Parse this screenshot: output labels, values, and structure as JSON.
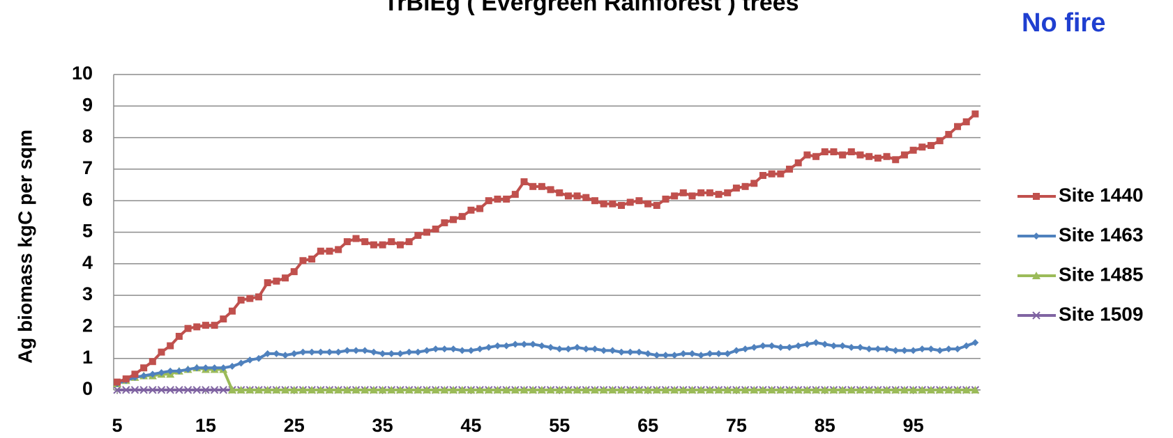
{
  "chart_data": {
    "type": "line",
    "title": "TrBlEg ( Evergreen Rainforest ) trees",
    "annotation": "No fire",
    "y_label": "Ag biomass kgC per sqm",
    "x": [
      5,
      6,
      7,
      8,
      9,
      10,
      11,
      12,
      13,
      14,
      15,
      16,
      17,
      18,
      19,
      20,
      21,
      22,
      23,
      24,
      25,
      26,
      27,
      28,
      29,
      30,
      31,
      32,
      33,
      34,
      35,
      36,
      37,
      38,
      39,
      40,
      41,
      42,
      43,
      44,
      45,
      46,
      47,
      48,
      49,
      50,
      51,
      52,
      53,
      54,
      55,
      56,
      57,
      58,
      59,
      60,
      61,
      62,
      63,
      64,
      65,
      66,
      67,
      68,
      69,
      70,
      71,
      72,
      73,
      74,
      75,
      76,
      77,
      78,
      79,
      80,
      81,
      82,
      83,
      84,
      85,
      86,
      87,
      88,
      89,
      90,
      91,
      92,
      93,
      94,
      95,
      96,
      97,
      98,
      99,
      100,
      101,
      102
    ],
    "xlim": [
      4.6,
      102.6
    ],
    "xticks": [
      5,
      15,
      25,
      35,
      45,
      55,
      65,
      75,
      85,
      95
    ],
    "ylim": [
      0,
      10
    ],
    "yticks": [
      0,
      1,
      2,
      3,
      4,
      5,
      6,
      7,
      8,
      9,
      10
    ],
    "grid": true,
    "legend": "right",
    "series": [
      {
        "name": "Site 1440",
        "color": "#c0504d",
        "marker": "square",
        "values": [
          0.25,
          0.35,
          0.5,
          0.7,
          0.9,
          1.2,
          1.4,
          1.7,
          1.95,
          2.0,
          2.05,
          2.05,
          2.25,
          2.5,
          2.85,
          2.9,
          2.95,
          3.4,
          3.45,
          3.55,
          3.75,
          4.1,
          4.15,
          4.4,
          4.4,
          4.45,
          4.7,
          4.8,
          4.7,
          4.6,
          4.6,
          4.7,
          4.6,
          4.7,
          4.9,
          5.0,
          5.1,
          5.3,
          5.4,
          5.5,
          5.7,
          5.75,
          6.0,
          6.05,
          6.05,
          6.2,
          6.6,
          6.45,
          6.45,
          6.35,
          6.25,
          6.15,
          6.15,
          6.1,
          6.0,
          5.9,
          5.9,
          5.85,
          5.95,
          6.0,
          5.9,
          5.85,
          6.05,
          6.15,
          6.25,
          6.15,
          6.25,
          6.25,
          6.2,
          6.25,
          6.4,
          6.45,
          6.55,
          6.8,
          6.85,
          6.85,
          7.0,
          7.2,
          7.45,
          7.4,
          7.55,
          7.55,
          7.45,
          7.55,
          7.45,
          7.4,
          7.35,
          7.4,
          7.3,
          7.45,
          7.6,
          7.7,
          7.75,
          7.9,
          8.1,
          8.35,
          8.5,
          8.75
        ]
      },
      {
        "name": "Site 1463",
        "color": "#4f81bd",
        "marker": "diamond",
        "values": [
          0.2,
          0.3,
          0.4,
          0.45,
          0.5,
          0.55,
          0.6,
          0.6,
          0.65,
          0.7,
          0.7,
          0.7,
          0.7,
          0.75,
          0.85,
          0.95,
          1.0,
          1.15,
          1.15,
          1.1,
          1.15,
          1.2,
          1.2,
          1.2,
          1.2,
          1.2,
          1.25,
          1.25,
          1.25,
          1.2,
          1.15,
          1.15,
          1.15,
          1.2,
          1.2,
          1.25,
          1.3,
          1.3,
          1.3,
          1.25,
          1.25,
          1.3,
          1.35,
          1.4,
          1.4,
          1.45,
          1.45,
          1.45,
          1.4,
          1.35,
          1.3,
          1.3,
          1.35,
          1.3,
          1.3,
          1.25,
          1.25,
          1.2,
          1.2,
          1.2,
          1.15,
          1.1,
          1.1,
          1.1,
          1.15,
          1.15,
          1.1,
          1.15,
          1.15,
          1.15,
          1.25,
          1.3,
          1.35,
          1.4,
          1.4,
          1.35,
          1.35,
          1.4,
          1.45,
          1.5,
          1.45,
          1.4,
          1.4,
          1.35,
          1.35,
          1.3,
          1.3,
          1.3,
          1.25,
          1.25,
          1.25,
          1.3,
          1.3,
          1.25,
          1.3,
          1.3,
          1.4,
          1.5
        ]
      },
      {
        "name": "Site 1485",
        "color": "#9bbb59",
        "marker": "triangle",
        "values": [
          0.2,
          0.3,
          0.4,
          0.45,
          0.45,
          0.5,
          0.5,
          0.6,
          0.65,
          0.7,
          0.65,
          0.65,
          0.65,
          0,
          0,
          0,
          0,
          0,
          0,
          0,
          0,
          0,
          0,
          0,
          0,
          0,
          0,
          0,
          0,
          0,
          0,
          0,
          0,
          0,
          0,
          0,
          0,
          0,
          0,
          0,
          0,
          0,
          0,
          0,
          0,
          0,
          0,
          0,
          0,
          0,
          0,
          0,
          0,
          0,
          0,
          0,
          0,
          0,
          0,
          0,
          0,
          0,
          0,
          0,
          0,
          0,
          0,
          0,
          0,
          0,
          0,
          0,
          0,
          0,
          0,
          0,
          0,
          0,
          0,
          0,
          0,
          0,
          0,
          0,
          0,
          0,
          0,
          0,
          0,
          0,
          0,
          0,
          0,
          0,
          0,
          0,
          0,
          0
        ]
      },
      {
        "name": "Site 1509",
        "color": "#8064a2",
        "marker": "x",
        "values": [
          0,
          0,
          0,
          0,
          0,
          0,
          0,
          0,
          0,
          0,
          0,
          0,
          0,
          0,
          0,
          0,
          0,
          0,
          0,
          0,
          0,
          0,
          0,
          0,
          0,
          0,
          0,
          0,
          0,
          0,
          0,
          0,
          0,
          0,
          0,
          0,
          0,
          0,
          0,
          0,
          0,
          0,
          0,
          0,
          0,
          0,
          0,
          0,
          0,
          0,
          0,
          0,
          0,
          0,
          0,
          0,
          0,
          0,
          0,
          0,
          0,
          0,
          0,
          0,
          0,
          0,
          0,
          0,
          0,
          0,
          0,
          0,
          0,
          0,
          0,
          0,
          0,
          0,
          0,
          0,
          0,
          0,
          0,
          0,
          0,
          0,
          0,
          0,
          0,
          0,
          0,
          0,
          0,
          0,
          0,
          0,
          0,
          0
        ]
      }
    ]
  }
}
